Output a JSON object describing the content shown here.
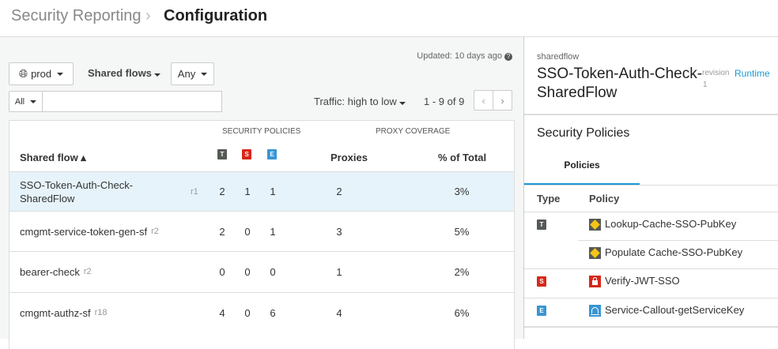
{
  "header": {
    "breadcrumb_parent": "Security Reporting",
    "page_title": "Configuration"
  },
  "toolbar": {
    "updated": "Updated: 10 days ago",
    "env": "prod",
    "type_filter": "Shared flows",
    "any_filter": "Any",
    "search_scope": "All",
    "search_value": "",
    "sort": "Traffic: high to low",
    "pagination": "1 - 9 of 9"
  },
  "table": {
    "group_headers": {
      "security": "SECURITY POLICIES",
      "coverage": "PROXY COVERAGE"
    },
    "columns": {
      "name": "Shared flow",
      "T": "T",
      "S": "S",
      "E": "E",
      "proxies": "Proxies",
      "percent": "% of Total"
    },
    "rows": [
      {
        "name": "SSO-Token-Auth-Check-SharedFlow",
        "rev": "r1",
        "t": "2",
        "s": "1",
        "e": "1",
        "proxies": "2",
        "percent": "3%",
        "selected": true
      },
      {
        "name": "cmgmt-service-token-gen-sf",
        "rev": "r2",
        "t": "2",
        "s": "0",
        "e": "1",
        "proxies": "3",
        "percent": "5%"
      },
      {
        "name": "bearer-check",
        "rev": "r2",
        "t": "0",
        "s": "0",
        "e": "0",
        "proxies": "1",
        "percent": "2%"
      },
      {
        "name": "cmgmt-authz-sf",
        "rev": "r18",
        "t": "4",
        "s": "0",
        "e": "6",
        "proxies": "4",
        "percent": "6%"
      }
    ]
  },
  "detail": {
    "kind": "sharedflow",
    "title_line1": "SSO-Token-Auth-Check-",
    "title_line2": "SharedFlow",
    "revision_label": "revision",
    "revision": "1",
    "runtime_link": "Runtime",
    "section_title": "Security Policies",
    "tab": "Policies",
    "columns": {
      "type": "Type",
      "policy": "Policy"
    },
    "policies": [
      {
        "type": "T",
        "name": "Lookup-Cache-SSO-PubKey",
        "icon": "cache-icon"
      },
      {
        "type": "",
        "name": "Populate Cache-SSO-PubKey",
        "icon": "cache-icon"
      },
      {
        "type": "S",
        "name": "Verify-JWT-SSO",
        "icon": "lock-icon"
      },
      {
        "type": "E",
        "name": "Service-Callout-getServiceKey",
        "icon": "callout-icon"
      }
    ]
  },
  "colors": {
    "accent": "#1a9ad6",
    "selected_row": "#e6f3fa",
    "T": "#555a55",
    "S": "#d7281b",
    "E": "#3895d3"
  }
}
